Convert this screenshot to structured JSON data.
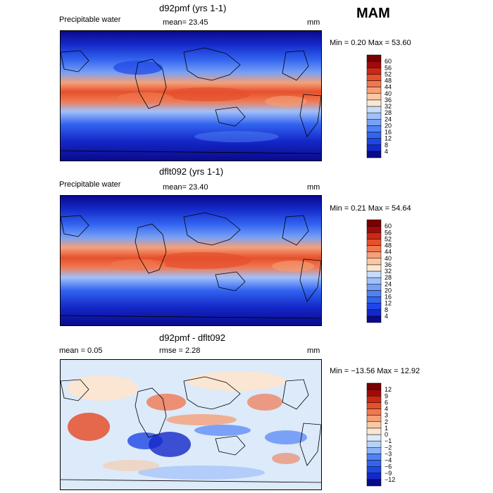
{
  "season": "MAM",
  "panels": [
    {
      "title": "d92pmf (yrs 1-1)",
      "left_label": "Precipitable water",
      "center_label": "mean=  23.45",
      "right_label": "mm",
      "stats": "Min =    0.20  Max =   53.60",
      "colorbar": {
        "levels": [
          "4",
          "8",
          "12",
          "16",
          "20",
          "24",
          "28",
          "32",
          "36",
          "40",
          "44",
          "48",
          "52",
          "56",
          "60"
        ],
        "colors": [
          "#0a0a8c",
          "#1428c8",
          "#1e46e6",
          "#3264f0",
          "#5082f5",
          "#78a0f5",
          "#a0c0fa",
          "#c8dcfa",
          "#fae6d2",
          "#fac8a5",
          "#f5a078",
          "#f07850",
          "#e6502d",
          "#cd2814",
          "#a00a0a",
          "#780000"
        ]
      }
    },
    {
      "title": "dflt092 (yrs 1-1)",
      "left_label": "Precipitable water",
      "center_label": "mean=  23.40",
      "right_label": "mm",
      "stats": "Min =    0.21  Max =   54.64",
      "colorbar": {
        "levels": [
          "4",
          "8",
          "12",
          "16",
          "20",
          "24",
          "28",
          "32",
          "36",
          "40",
          "44",
          "48",
          "52",
          "56",
          "60"
        ],
        "colors": [
          "#0a0a8c",
          "#1428c8",
          "#1e46e6",
          "#3264f0",
          "#5082f5",
          "#78a0f5",
          "#a0c0fa",
          "#c8dcfa",
          "#fae6d2",
          "#fac8a5",
          "#f5a078",
          "#f07850",
          "#e6502d",
          "#cd2814",
          "#a00a0a",
          "#780000"
        ]
      }
    },
    {
      "title": "d92pmf - dflt092",
      "left_label": "mean =     0.05",
      "center_label": "rmse =    2.28",
      "right_label": "mm",
      "stats": "Min = −13.56  Max =   12.92",
      "colorbar": {
        "levels": [
          "−12",
          "−9",
          "−6",
          "−4",
          "−3",
          "−2",
          "−1",
          "0",
          "1",
          "2",
          "3",
          "4",
          "6",
          "9",
          "12"
        ],
        "colors": [
          "#0a0a8c",
          "#1428c8",
          "#1e46e6",
          "#3264f0",
          "#5082f5",
          "#8cb4f5",
          "#b4d2fa",
          "#dceafa",
          "#fae6d2",
          "#fac8a5",
          "#f5a078",
          "#f07850",
          "#e6502d",
          "#cd2814",
          "#a00a0a",
          "#780000"
        ]
      }
    }
  ]
}
